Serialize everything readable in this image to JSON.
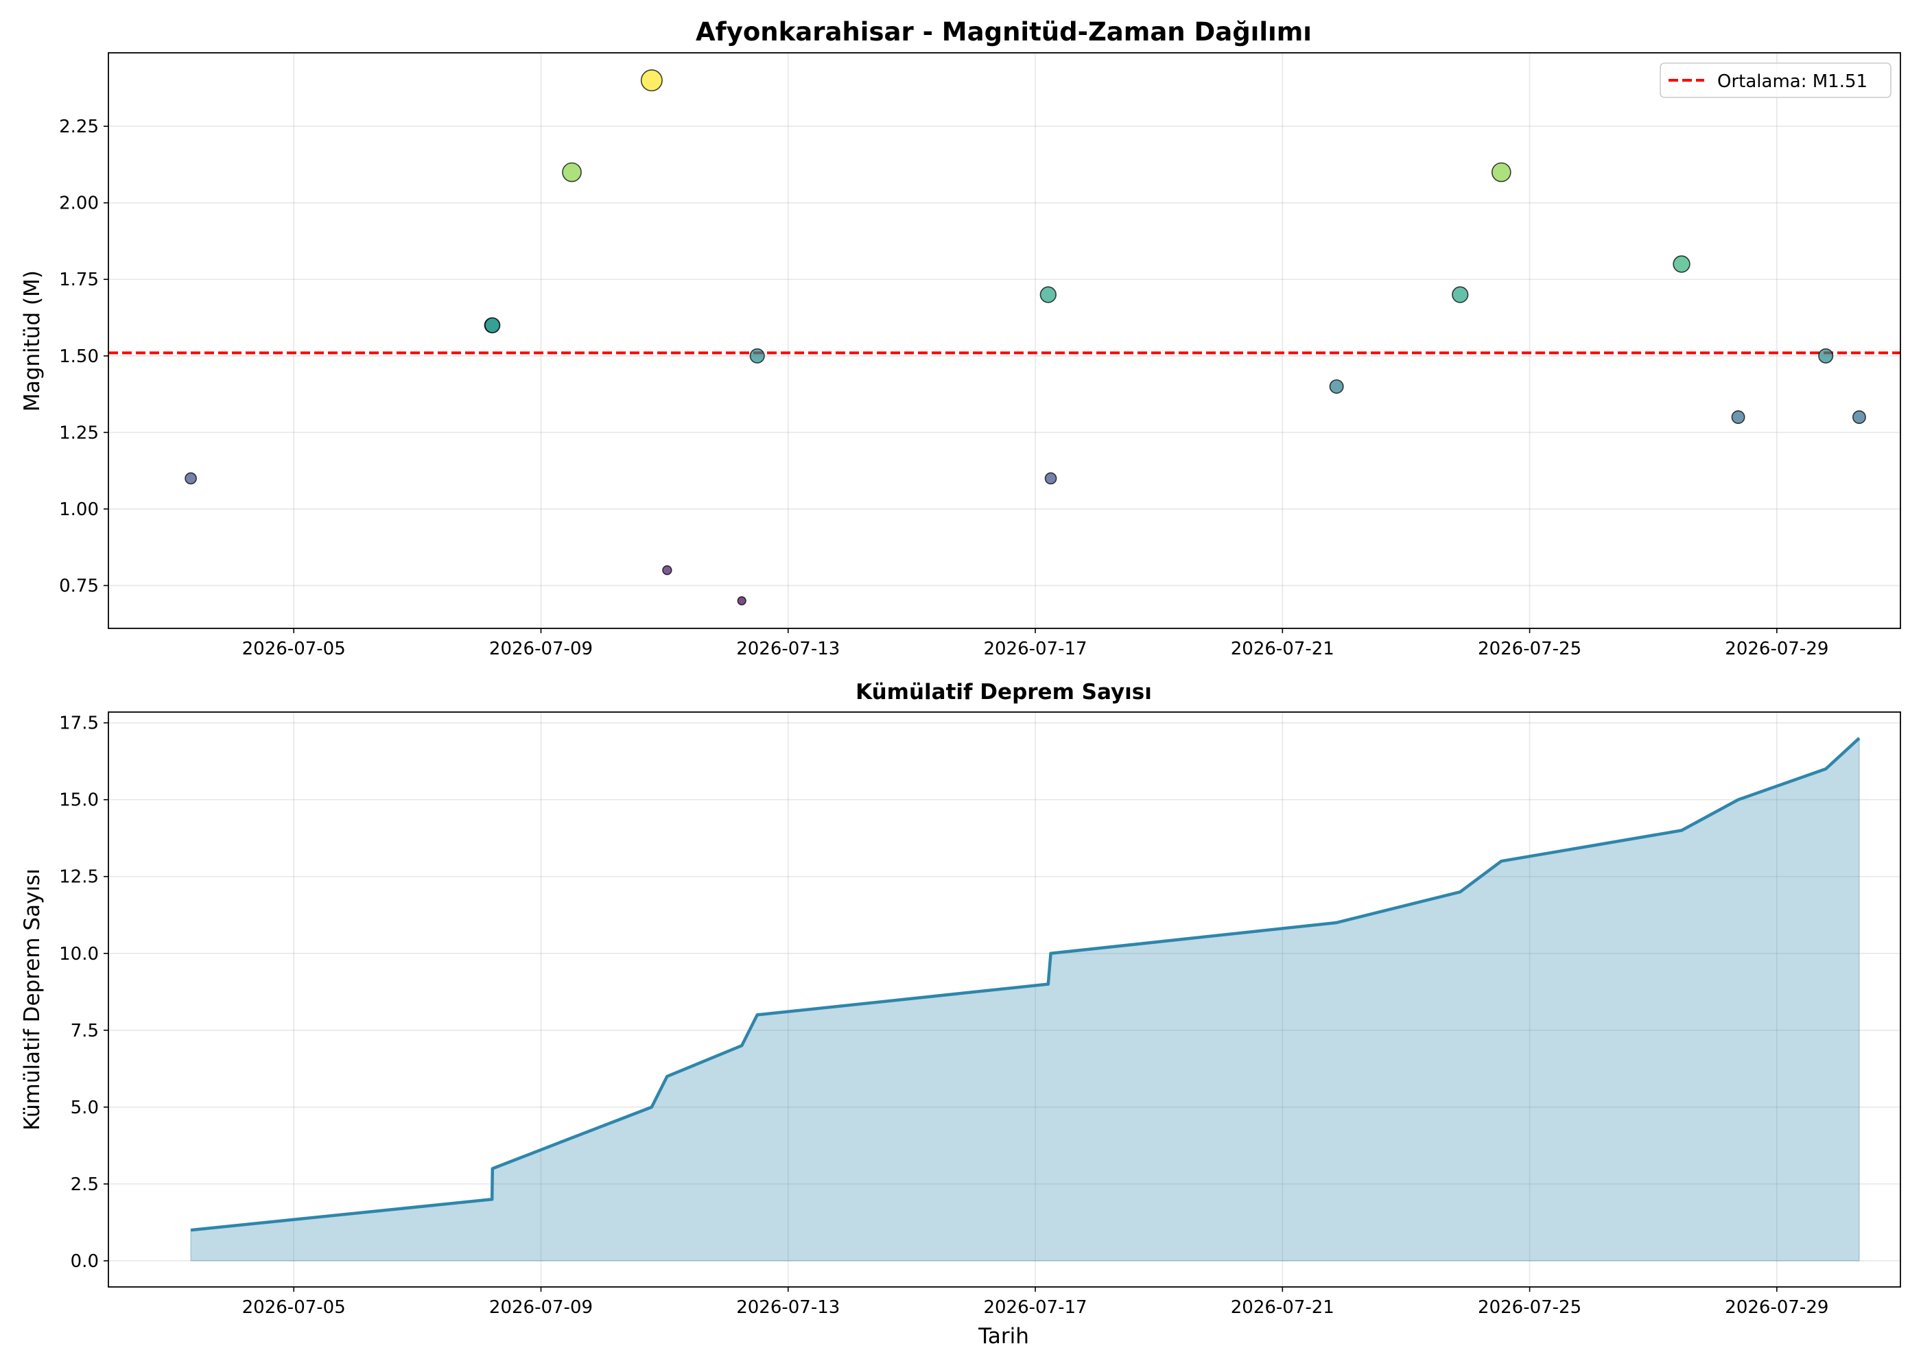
{
  "chart_data": [
    {
      "type": "scatter",
      "title": "Afyonkarahisar - Magnitüd-Zaman Dağılımı",
      "xlabel": "",
      "ylabel": "Magnitüd (M)",
      "x_range": [
        "2026-07-02",
        "2026-07-31"
      ],
      "ylim": [
        0.61,
        2.49
      ],
      "x_ticks": [
        "2026-07-05",
        "2026-07-09",
        "2026-07-13",
        "2026-07-17",
        "2026-07-21",
        "2026-07-25",
        "2026-07-29"
      ],
      "y_ticks": [
        "0.75",
        "1.00",
        "1.25",
        "1.50",
        "1.75",
        "2.00",
        "2.25"
      ],
      "grid": true,
      "marker_color_scale": "viridis",
      "points": [
        {
          "x": "2026-07-03 08:00",
          "y": 1.1
        },
        {
          "x": "2026-07-08 05:00",
          "y": 1.6
        },
        {
          "x": "2026-07-08 05:10",
          "y": 1.6
        },
        {
          "x": "2026-07-09 12:00",
          "y": 2.1
        },
        {
          "x": "2026-07-10 19:00",
          "y": 2.4
        },
        {
          "x": "2026-07-11 01:00",
          "y": 0.8
        },
        {
          "x": "2026-07-12 06:00",
          "y": 0.7
        },
        {
          "x": "2026-07-12 12:00",
          "y": 1.5
        },
        {
          "x": "2026-07-17 05:00",
          "y": 1.7
        },
        {
          "x": "2026-07-17 06:00",
          "y": 1.1
        },
        {
          "x": "2026-07-21 21:00",
          "y": 1.4
        },
        {
          "x": "2026-07-23 21:00",
          "y": 1.7
        },
        {
          "x": "2026-07-24 13:00",
          "y": 2.1
        },
        {
          "x": "2026-07-27 11:00",
          "y": 1.8
        },
        {
          "x": "2026-07-28 09:00",
          "y": 1.3
        },
        {
          "x": "2026-07-29 19:00",
          "y": 1.5
        },
        {
          "x": "2026-07-30 08:00",
          "y": 1.3
        }
      ],
      "mean_line": {
        "value": 1.51,
        "label": "Ortalama: M1.51",
        "color": "#ff0000",
        "style": "dashed"
      },
      "legend_position": "top-right"
    },
    {
      "type": "area",
      "title": "Kümülatif Deprem Sayısı",
      "xlabel": "Tarih",
      "ylabel": "Kümülatif Deprem Sayısı",
      "x_range": [
        "2026-07-02",
        "2026-07-31"
      ],
      "ylim": [
        -0.85,
        17.85
      ],
      "x_ticks": [
        "2026-07-05",
        "2026-07-09",
        "2026-07-13",
        "2026-07-17",
        "2026-07-21",
        "2026-07-25",
        "2026-07-29"
      ],
      "y_ticks": [
        "0.0",
        "2.5",
        "5.0",
        "7.5",
        "10.0",
        "12.5",
        "15.0",
        "17.5"
      ],
      "grid": true,
      "line_color": "#2e86ab",
      "fill_color": "#2e86ab",
      "points": [
        {
          "x": "2026-07-03 08:00",
          "y": 1
        },
        {
          "x": "2026-07-08 05:00",
          "y": 2
        },
        {
          "x": "2026-07-08 05:10",
          "y": 3
        },
        {
          "x": "2026-07-09 12:00",
          "y": 4
        },
        {
          "x": "2026-07-10 19:00",
          "y": 5
        },
        {
          "x": "2026-07-11 01:00",
          "y": 6
        },
        {
          "x": "2026-07-12 06:00",
          "y": 7
        },
        {
          "x": "2026-07-12 12:00",
          "y": 8
        },
        {
          "x": "2026-07-17 05:00",
          "y": 9
        },
        {
          "x": "2026-07-17 06:00",
          "y": 10
        },
        {
          "x": "2026-07-21 21:00",
          "y": 11
        },
        {
          "x": "2026-07-23 21:00",
          "y": 12
        },
        {
          "x": "2026-07-24 13:00",
          "y": 13
        },
        {
          "x": "2026-07-27 11:00",
          "y": 14
        },
        {
          "x": "2026-07-28 09:00",
          "y": 15
        },
        {
          "x": "2026-07-29 19:00",
          "y": 16
        },
        {
          "x": "2026-07-30 08:00",
          "y": 17
        }
      ]
    }
  ]
}
